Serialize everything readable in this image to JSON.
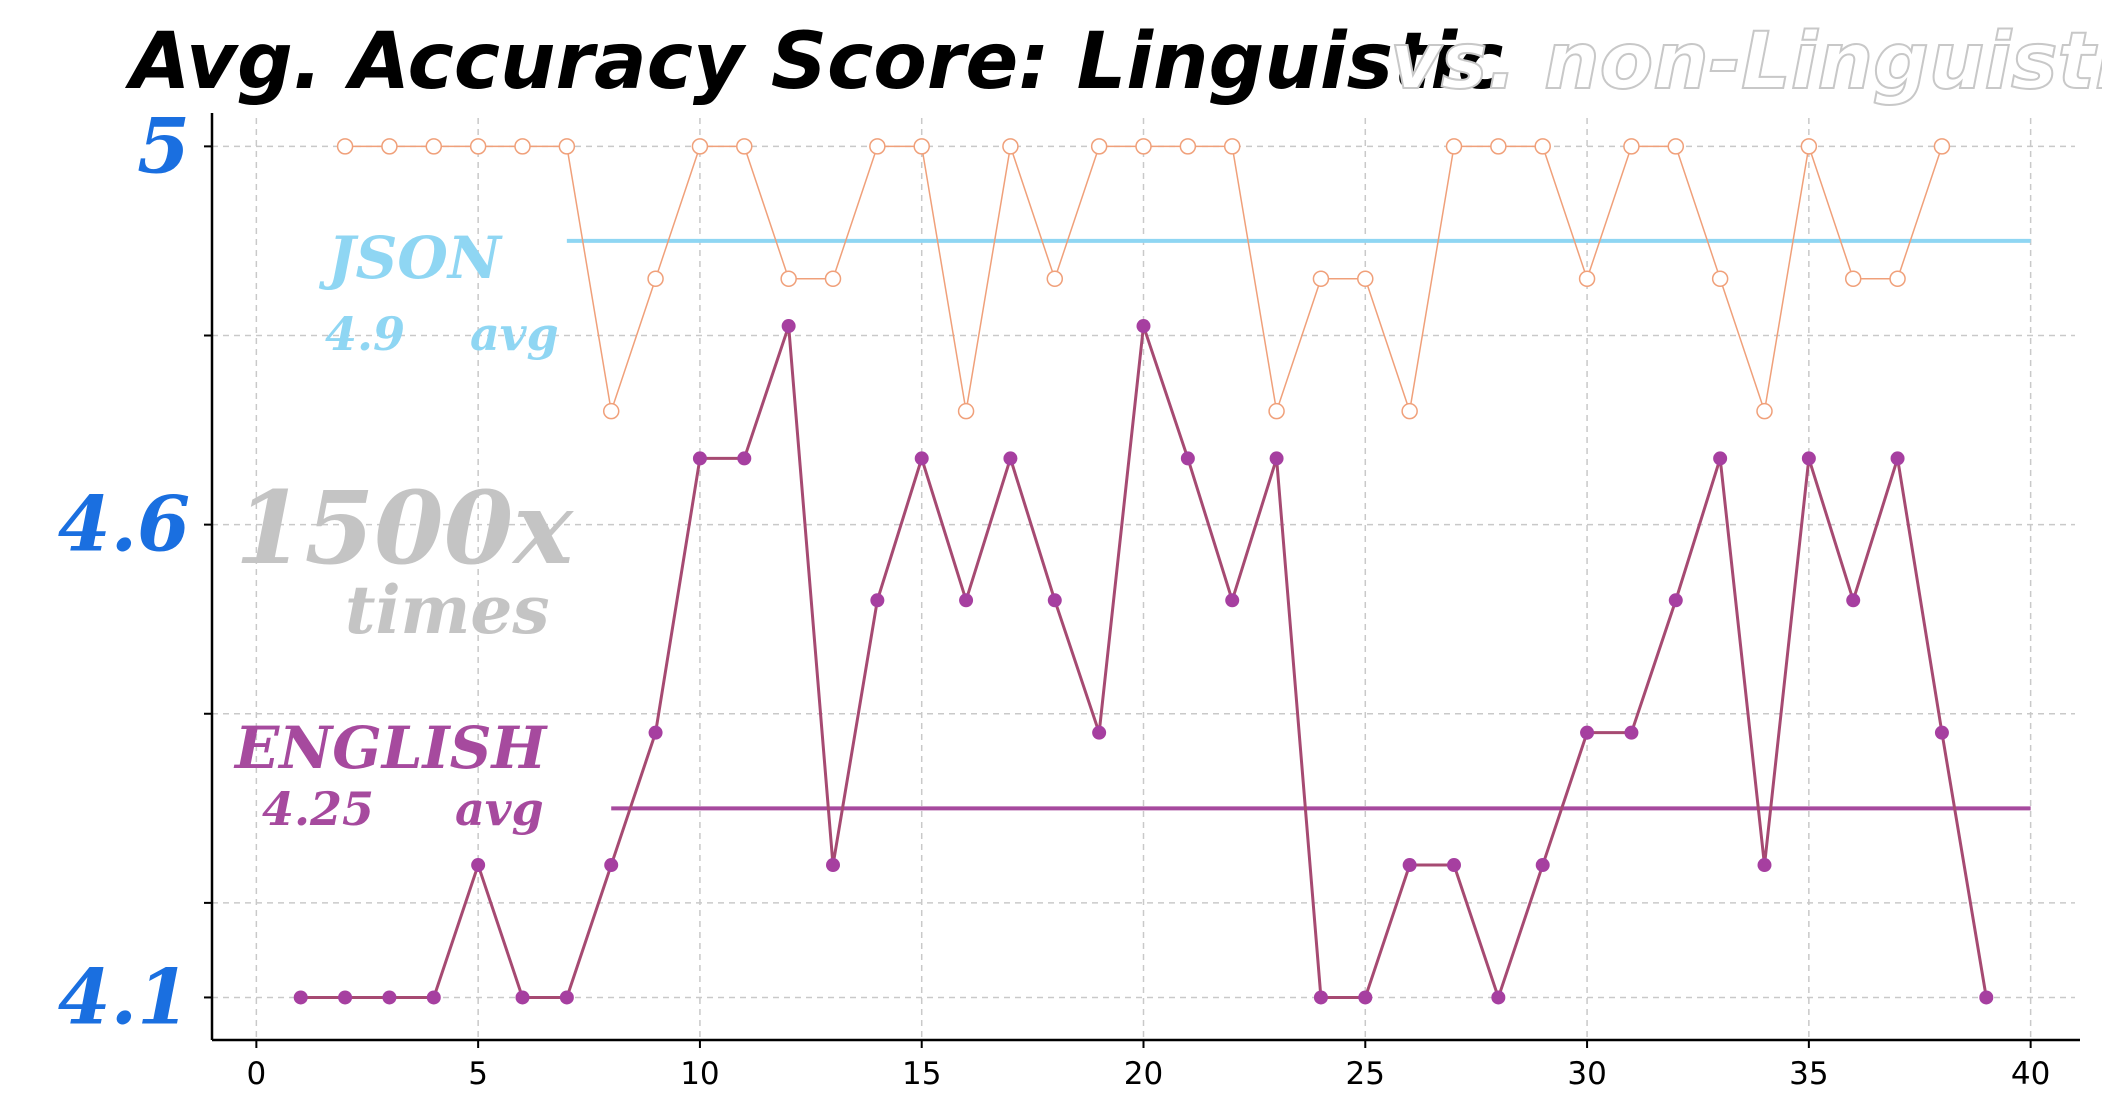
{
  "chart_data": {
    "type": "line",
    "title": "Avg. Accuracy Score:  Linguistic",
    "title_suffix": "vs. non-Linguistic",
    "xlim": [
      -1,
      41
    ],
    "ylim": [
      4.055,
      5.03
    ],
    "x_ticks": [
      "0",
      "5",
      "10",
      "15",
      "20",
      "25",
      "30",
      "35",
      "40"
    ],
    "y_ticks": [
      {
        "value": 5.0,
        "label": "5"
      },
      {
        "value": 4.6,
        "label": "4.6"
      },
      {
        "value": 4.1,
        "label": "4.1"
      }
    ],
    "y_minor_grid": [
      5.0,
      4.8,
      4.6,
      4.4,
      4.2,
      4.1
    ],
    "grid": true,
    "series": [
      {
        "name": "JSON",
        "color": "#f0a07a",
        "marker": "hollow",
        "x": [
          2,
          3,
          4,
          5,
          6,
          7,
          8,
          9,
          10,
          11,
          12,
          13,
          14,
          15,
          16,
          17,
          18,
          19,
          20,
          21,
          22,
          23,
          24,
          25,
          26,
          27,
          28,
          29,
          30,
          31,
          32,
          33,
          34,
          35,
          36,
          37,
          38
        ],
        "values": [
          5,
          5,
          5,
          5,
          5,
          5,
          4.72,
          4.86,
          5,
          5,
          4.86,
          4.86,
          5,
          5,
          4.72,
          5,
          4.86,
          5,
          5,
          5,
          5,
          4.72,
          4.86,
          4.86,
          4.72,
          5,
          5,
          5,
          4.86,
          5,
          5,
          4.86,
          4.72,
          5,
          4.86,
          4.86,
          5
        ]
      },
      {
        "name": "ENGLISH",
        "color": "#a64a72",
        "marker_color": "#a63fa0",
        "marker": "filled",
        "x": [
          1,
          2,
          3,
          4,
          5,
          6,
          7,
          8,
          9,
          10,
          11,
          12,
          13,
          14,
          15,
          16,
          17,
          18,
          19,
          20,
          21,
          22,
          23,
          24,
          25,
          26,
          27,
          28,
          29,
          30,
          31,
          32,
          33,
          34,
          35,
          36,
          37,
          38,
          39
        ],
        "values": [
          4.1,
          4.1,
          4.1,
          4.1,
          4.24,
          4.1,
          4.1,
          4.24,
          4.38,
          4.67,
          4.67,
          4.81,
          4.24,
          4.52,
          4.67,
          4.52,
          4.67,
          4.52,
          4.38,
          4.81,
          4.67,
          4.52,
          4.67,
          4.1,
          4.1,
          4.24,
          4.24,
          4.1,
          4.24,
          4.38,
          4.38,
          4.52,
          4.67,
          4.24,
          4.67,
          4.52,
          4.67,
          4.38,
          4.1
        ]
      }
    ],
    "avg_lines": [
      {
        "name": "JSON",
        "value": 4.9,
        "x_start": 7,
        "x_end": 40,
        "color": "#8fd6f3"
      },
      {
        "name": "ENGLISH",
        "value": 4.3,
        "x_start": 8,
        "x_end": 40,
        "color": "#a64a9e"
      }
    ],
    "annotations": {
      "json_label": "JSON",
      "json_avg_value": "4.9",
      "json_avg_word": "avg",
      "english_label": "ENGLISH",
      "english_avg_value": "4.25",
      "english_avg_word": "avg",
      "multiplier": "1500x",
      "multiplier_word": "times"
    }
  }
}
